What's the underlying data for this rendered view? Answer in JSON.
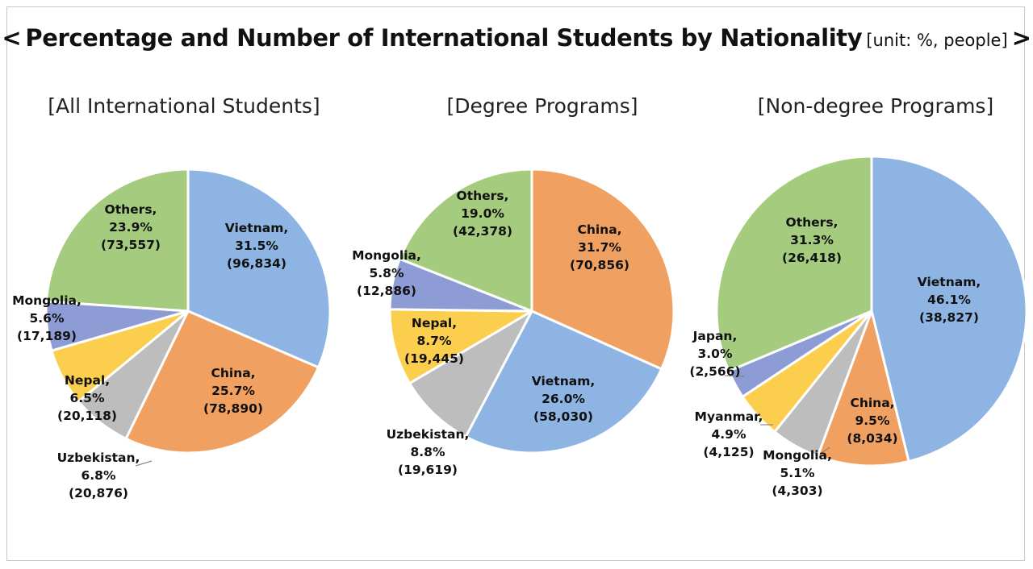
{
  "header": {
    "title_open": "<",
    "title": "Percentage and Number of International Students by Nationality",
    "unit": "[unit: %, people]",
    "title_close": ">"
  },
  "chart_data": [
    {
      "type": "pie",
      "title": "[All International Students]",
      "slices": [
        {
          "label": "Vietnam",
          "percent": 31.5,
          "count": 96834,
          "count_text": "(96,834)",
          "color": "#8db4e2"
        },
        {
          "label": "China",
          "percent": 25.7,
          "count": 78890,
          "count_text": "(78,890)",
          "color": "#f0a060"
        },
        {
          "label": "Uzbekistan",
          "percent": 6.8,
          "count": 20876,
          "count_text": "(20,876)",
          "color": "#bdbdbd"
        },
        {
          "label": "Nepal",
          "percent": 6.5,
          "count": 20118,
          "count_text": "(20,118)",
          "color": "#fcce4e"
        },
        {
          "label": "Mongolia",
          "percent": 5.6,
          "count": 17189,
          "count_text": "(17,189)",
          "color": "#8e9cd6"
        },
        {
          "label": "Others",
          "percent": 23.9,
          "count": 73557,
          "count_text": "(73,557)",
          "color": "#a5cc7e"
        }
      ]
    },
    {
      "type": "pie",
      "title": "[Degree Programs]",
      "slices": [
        {
          "label": "China",
          "percent": 31.7,
          "count": 70856,
          "count_text": "(70,856)",
          "color": "#f0a060"
        },
        {
          "label": "Vietnam",
          "percent": 26.0,
          "count": 58030,
          "count_text": "(58,030)",
          "color": "#8db4e2"
        },
        {
          "label": "Uzbekistan",
          "percent": 8.8,
          "count": 19619,
          "count_text": "(19,619)",
          "color": "#bdbdbd"
        },
        {
          "label": "Nepal",
          "percent": 8.7,
          "count": 19445,
          "count_text": "(19,445)",
          "color": "#fcce4e"
        },
        {
          "label": "Mongolia",
          "percent": 5.8,
          "count": 12886,
          "count_text": "(12,886)",
          "color": "#8e9cd6"
        },
        {
          "label": "Others",
          "percent": 19.0,
          "count": 42378,
          "count_text": "(42,378)",
          "color": "#a5cc7e"
        }
      ]
    },
    {
      "type": "pie",
      "title": "[Non-degree Programs]",
      "slices": [
        {
          "label": "Vietnam",
          "percent": 46.1,
          "count": 38827,
          "count_text": "(38,827)",
          "color": "#8db4e2"
        },
        {
          "label": "China",
          "percent": 9.5,
          "count": 8034,
          "count_text": "(8,034)",
          "color": "#f0a060"
        },
        {
          "label": "Mongolia",
          "percent": 5.1,
          "count": 4303,
          "count_text": "(4,303)",
          "color": "#bdbdbd"
        },
        {
          "label": "Myanmar",
          "percent": 4.9,
          "count": 4125,
          "count_text": "(4,125)",
          "color": "#fcce4e"
        },
        {
          "label": "Japan",
          "percent": 3.0,
          "count": 2566,
          "count_text": "(2,566)",
          "color": "#8e9cd6"
        },
        {
          "label": "Others",
          "percent": 31.3,
          "count": 26418,
          "count_text": "(26,418)",
          "color": "#a5cc7e"
        }
      ]
    }
  ]
}
